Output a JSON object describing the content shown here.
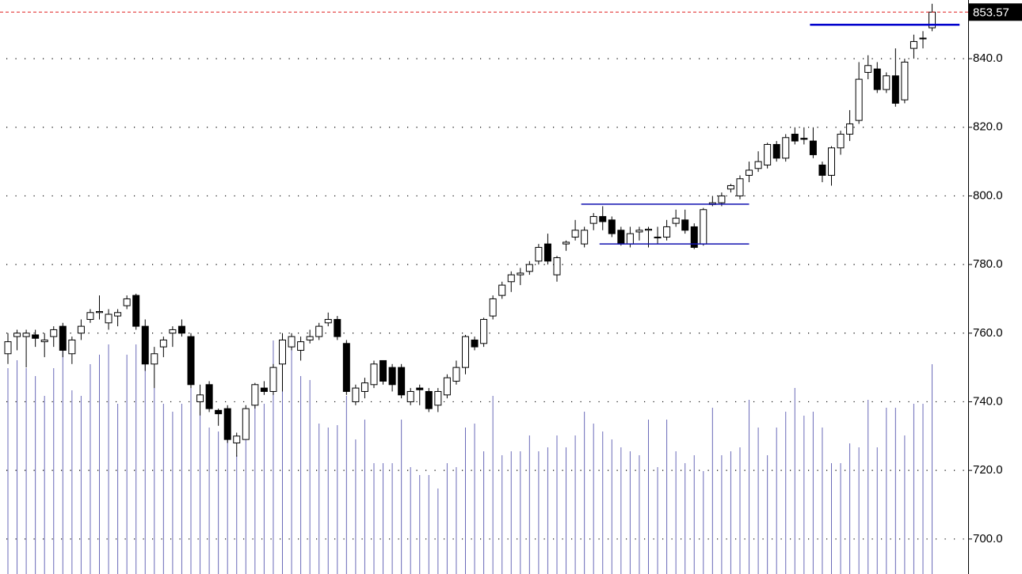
{
  "chart_data": {
    "type": "candlestick",
    "open": [
      754,
      759,
      759,
      759.5,
      757.5,
      759,
      762,
      754,
      760,
      764,
      766,
      763,
      765,
      768,
      771,
      762,
      751,
      756,
      760,
      762,
      759,
      740,
      745,
      737.5,
      738,
      728,
      729,
      739,
      744,
      743,
      751,
      756,
      755,
      758,
      759,
      763,
      764,
      757,
      740,
      743,
      745,
      752,
      750,
      750,
      740,
      744,
      743,
      739,
      742,
      746,
      750,
      758,
      757,
      765,
      771,
      775,
      777,
      778,
      781,
      786,
      777,
      786,
      788,
      786,
      792,
      794,
      793,
      790,
      786,
      789.5,
      790,
      787.8,
      788,
      792,
      793,
      791,
      786,
      797.5,
      798,
      802,
      800,
      806,
      808,
      809,
      815,
      811,
      818,
      816.8,
      816,
      809,
      806,
      814,
      818,
      822,
      836,
      837,
      831,
      835,
      828,
      843,
      845.8,
      849
    ],
    "high": [
      760,
      761,
      761,
      761,
      760,
      762,
      763,
      759,
      764,
      767,
      771,
      767,
      767,
      771,
      771.5,
      764,
      756,
      759,
      762,
      764,
      760,
      745,
      746,
      738,
      739,
      731,
      739,
      745.5,
      746,
      751,
      760,
      760,
      759,
      761,
      763,
      766,
      765,
      758,
      745,
      747,
      752,
      752,
      751,
      751,
      744,
      745,
      744,
      744,
      748,
      752,
      759.5,
      759,
      764.5,
      771,
      775,
      778,
      779,
      781,
      786,
      789,
      782.5,
      787,
      793,
      791,
      795,
      797,
      794,
      791,
      791,
      791,
      791,
      791,
      793,
      796,
      796,
      792,
      796.5,
      800,
      801,
      803.5,
      806,
      810,
      813,
      815.5,
      816,
      818,
      820,
      820,
      820,
      810,
      814.5,
      819,
      825,
      839,
      841,
      839,
      836,
      843,
      840,
      847,
      848,
      856
    ],
    "low": [
      751,
      755,
      750,
      756,
      753,
      756,
      753,
      751,
      758,
      763,
      764,
      761,
      762,
      767,
      761,
      749,
      744,
      753,
      756,
      759,
      744,
      736,
      737,
      733,
      728,
      724,
      729,
      738,
      742,
      742,
      743,
      755,
      752,
      757,
      758,
      762,
      758,
      742,
      739,
      741,
      744,
      745,
      743,
      741,
      739,
      739,
      737,
      737,
      741,
      745,
      748,
      755,
      756,
      764,
      770,
      772,
      774,
      777,
      780,
      780,
      775,
      784,
      787,
      785,
      790,
      790,
      788,
      785.5,
      785,
      787,
      785,
      786,
      787,
      791,
      789,
      784.5,
      785.5,
      797,
      797,
      801,
      799,
      804,
      807,
      808,
      810,
      810,
      815,
      815,
      811,
      804,
      803,
      812,
      816,
      821,
      834,
      830,
      830,
      826,
      827,
      840,
      843,
      848
    ],
    "close": [
      757.5,
      760,
      760,
      758.5,
      758,
      761,
      755,
      758,
      762,
      766,
      766.3,
      765.5,
      766,
      770,
      762,
      751,
      754,
      758,
      761,
      760,
      745,
      742,
      738,
      736.5,
      729,
      730,
      738,
      745,
      743,
      750,
      758,
      759,
      757.5,
      759,
      762,
      764,
      759,
      743,
      744,
      745.5,
      751,
      746,
      745,
      742,
      743,
      743.5,
      738,
      743,
      747,
      750,
      759,
      756,
      764,
      770,
      774,
      777,
      777.5,
      780,
      785,
      781,
      782,
      786.5,
      790,
      790,
      794,
      792.5,
      789,
      786,
      789,
      790,
      790.3,
      788,
      791,
      793.5,
      790,
      785,
      796,
      798,
      800,
      803,
      805,
      807.5,
      810,
      815,
      811,
      817,
      816,
      816.5,
      812,
      806,
      814,
      818,
      821,
      834,
      838,
      831,
      835,
      827,
      839,
      845,
      846,
      853.57
    ],
    "volume": [
      260,
      270,
      260,
      250,
      225,
      260,
      290,
      232,
      225,
      265,
      277,
      290,
      215,
      277,
      290,
      290,
      235,
      215,
      205,
      215,
      245,
      205,
      185,
      180,
      170,
      150,
      205,
      225,
      215,
      295,
      275,
      295,
      250,
      245,
      190,
      185,
      188,
      225,
      170,
      195,
      140,
      140,
      140,
      195,
      135,
      125,
      125,
      108,
      140,
      135,
      185,
      190,
      155,
      225,
      150,
      155,
      155,
      175,
      155,
      160,
      175,
      160,
      175,
      205,
      190,
      180,
      170,
      160,
      155,
      150,
      195,
      135,
      195,
      155,
      140,
      150,
      130,
      210,
      150,
      155,
      160,
      220,
      185,
      150,
      185,
      205,
      235,
      200,
      205,
      185,
      140,
      140,
      165,
      160,
      220,
      160,
      210,
      210,
      175,
      215,
      215,
      265
    ],
    "volume_color": "#6a6ab8",
    "up_color": "#ffffff",
    "down_color": "#000000",
    "ylim": [
      689.8,
      857.1
    ],
    "yticks": [
      {
        "value": 700,
        "label": "700.0"
      },
      {
        "value": 720,
        "label": "720.0"
      },
      {
        "value": 740,
        "label": "740.0"
      },
      {
        "value": 760,
        "label": "760.0"
      },
      {
        "value": 780,
        "label": "780.0"
      },
      {
        "value": 800,
        "label": "800.0"
      },
      {
        "value": 820,
        "label": "820.0"
      },
      {
        "value": 840,
        "label": "840.0"
      }
    ],
    "y2lim": [
      0,
      725
    ],
    "grid": true,
    "last_price": 853.57,
    "last_price_label": "853.57",
    "last_price_color": "#e02020",
    "levels": [
      {
        "value": 797.6,
        "start": 63,
        "end": 81,
        "color": "#1010b0"
      },
      {
        "value": 786.0,
        "start": 65,
        "end": 81,
        "color": "#1010b0"
      },
      {
        "value": 849.9,
        "start": 88,
        "end": 104,
        "color": "#0000cc"
      }
    ]
  }
}
